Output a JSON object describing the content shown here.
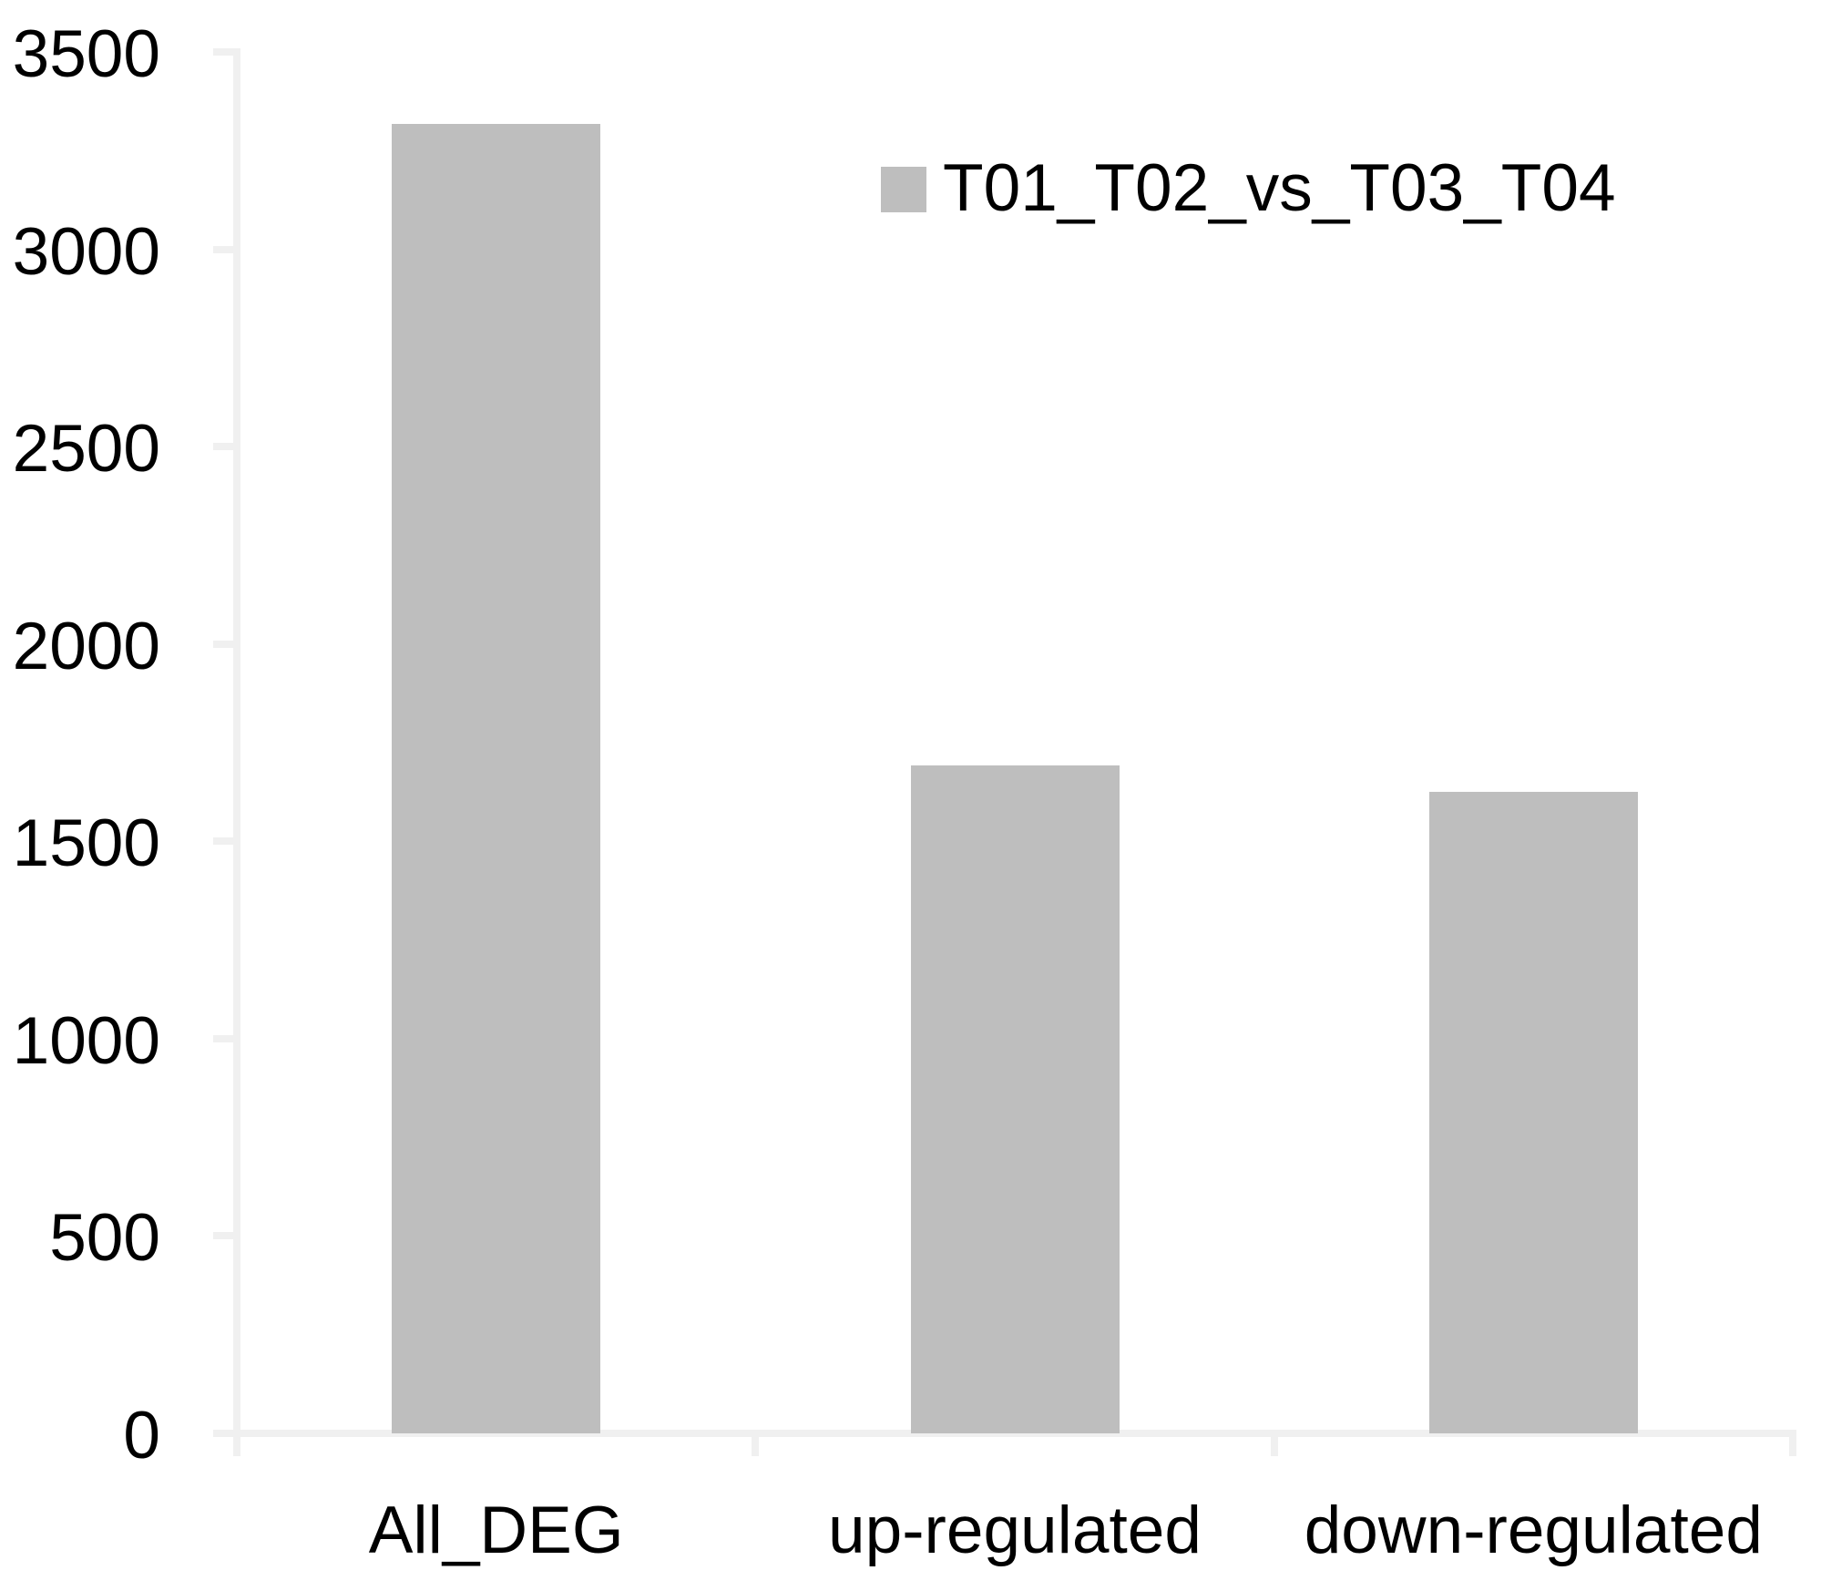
{
  "chart_data": {
    "type": "bar",
    "title": "",
    "xlabel": "",
    "ylabel": "",
    "categories": [
      "All_DEG",
      "up-regulated",
      "down-regulated"
    ],
    "series": [
      {
        "name": "T01_T02_vs_T03_T04",
        "values": [
          3317,
          1692,
          1625
        ]
      }
    ],
    "ylim": [
      0,
      3500
    ],
    "yticks": [
      0,
      500,
      1000,
      1500,
      2000,
      2500,
      3000,
      3500
    ],
    "ytick_labels": [
      "0",
      "500",
      "1000",
      "1500",
      "2000",
      "2500",
      "3000",
      "3500"
    ],
    "grid": false,
    "legend_position": "upper-right-inside",
    "bar_color": "#bebebe",
    "axis_color": "#f0f0f0",
    "text_color": "#000000",
    "background_color": "#ffffff"
  }
}
